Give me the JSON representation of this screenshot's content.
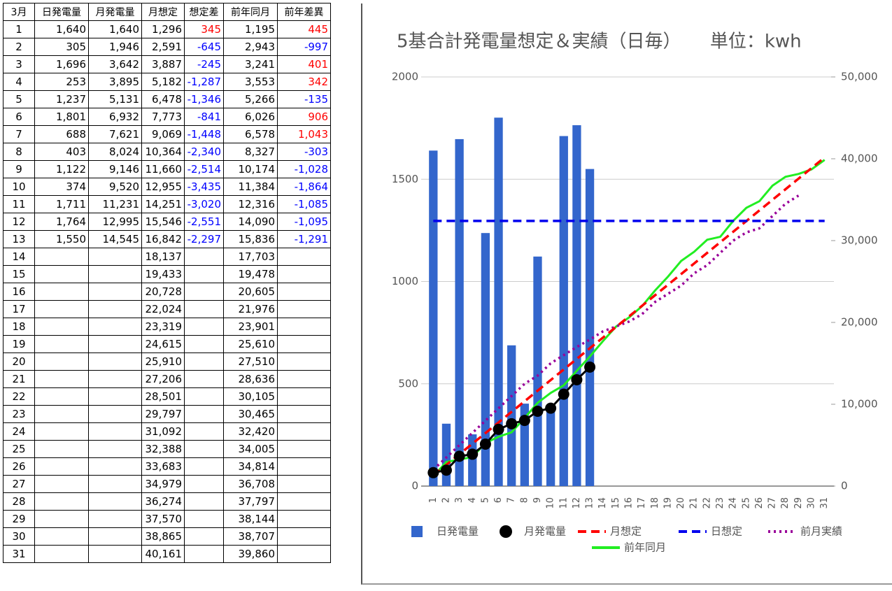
{
  "table": {
    "header": [
      "3月",
      "日発電量",
      "月発電量",
      "月想定",
      "想定差",
      "前年同月",
      "前年差異"
    ],
    "colored_columns": [
      4,
      6
    ],
    "positive_color": "#ff0000",
    "negative_color": "#0000ff",
    "rows": [
      [
        "1",
        "1,640",
        "1,640",
        "1,296",
        "345",
        "1,195",
        "445"
      ],
      [
        "2",
        "305",
        "1,946",
        "2,591",
        "-645",
        "2,943",
        "-997"
      ],
      [
        "3",
        "1,696",
        "3,642",
        "3,887",
        "-245",
        "3,241",
        "401"
      ],
      [
        "4",
        "253",
        "3,895",
        "5,182",
        "-1,287",
        "3,553",
        "342"
      ],
      [
        "5",
        "1,237",
        "5,131",
        "6,478",
        "-1,346",
        "5,266",
        "-135"
      ],
      [
        "6",
        "1,801",
        "6,932",
        "7,773",
        "-841",
        "6,026",
        "906"
      ],
      [
        "7",
        "688",
        "7,621",
        "9,069",
        "-1,448",
        "6,578",
        "1,043"
      ],
      [
        "8",
        "403",
        "8,024",
        "10,364",
        "-2,340",
        "8,327",
        "-303"
      ],
      [
        "9",
        "1,122",
        "9,146",
        "11,660",
        "-2,514",
        "10,174",
        "-1,028"
      ],
      [
        "10",
        "374",
        "9,520",
        "12,955",
        "-3,435",
        "11,384",
        "-1,864"
      ],
      [
        "11",
        "1,711",
        "11,231",
        "14,251",
        "-3,020",
        "12,316",
        "-1,085"
      ],
      [
        "12",
        "1,764",
        "12,995",
        "15,546",
        "-2,551",
        "14,090",
        "-1,095"
      ],
      [
        "13",
        "1,550",
        "14,545",
        "16,842",
        "-2,297",
        "15,836",
        "-1,291"
      ],
      [
        "14",
        null,
        null,
        "18,137",
        null,
        "17,703",
        null
      ],
      [
        "15",
        null,
        null,
        "19,433",
        null,
        "19,478",
        null
      ],
      [
        "16",
        null,
        null,
        "20,728",
        null,
        "20,605",
        null
      ],
      [
        "17",
        null,
        null,
        "22,024",
        null,
        "21,976",
        null
      ],
      [
        "18",
        null,
        null,
        "23,319",
        null,
        "23,901",
        null
      ],
      [
        "19",
        null,
        null,
        "24,615",
        null,
        "25,610",
        null
      ],
      [
        "20",
        null,
        null,
        "25,910",
        null,
        "27,510",
        null
      ],
      [
        "21",
        null,
        null,
        "27,206",
        null,
        "28,636",
        null
      ],
      [
        "22",
        null,
        null,
        "28,501",
        null,
        "30,105",
        null
      ],
      [
        "23",
        null,
        null,
        "29,797",
        null,
        "30,465",
        null
      ],
      [
        "24",
        null,
        null,
        "31,092",
        null,
        "32,420",
        null
      ],
      [
        "25",
        null,
        null,
        "32,388",
        null,
        "34,005",
        null
      ],
      [
        "26",
        null,
        null,
        "33,683",
        null,
        "34,814",
        null
      ],
      [
        "27",
        null,
        null,
        "34,979",
        null,
        "36,708",
        null
      ],
      [
        "28",
        null,
        null,
        "36,274",
        null,
        "37,797",
        null
      ],
      [
        "29",
        null,
        null,
        "37,570",
        null,
        "38,144",
        null
      ],
      [
        "30",
        null,
        null,
        "38,865",
        null,
        "38,707",
        null
      ],
      [
        "31",
        null,
        null,
        "40,161",
        null,
        "39,860",
        null
      ]
    ]
  },
  "chart_data": {
    "type": "bar",
    "title": "5基合計発電量想定＆実績（日毎）     単位：kwh",
    "categories": [
      "1",
      "2",
      "3",
      "4",
      "5",
      "6",
      "7",
      "8",
      "9",
      "10",
      "11",
      "12",
      "13",
      "14",
      "15",
      "16",
      "17",
      "18",
      "19",
      "20",
      "21",
      "22",
      "23",
      "24",
      "25",
      "26",
      "27",
      "28",
      "29",
      "30",
      "31"
    ],
    "ylim": [
      0,
      2000
    ],
    "yticks": [
      0,
      500,
      1000,
      1500,
      2000
    ],
    "y2lim": [
      0,
      50000
    ],
    "y2ticks": [
      0,
      {
        "value": 10000,
        "label": "10,000"
      },
      {
        "value": 20000,
        "label": "20,000"
      },
      {
        "value": 30000,
        "label": "30,000"
      },
      {
        "value": 40000,
        "label": "40,000"
      },
      {
        "value": 50000,
        "label": "50,000"
      }
    ],
    "grid": true,
    "series": [
      {
        "name": "日発電量",
        "kind": "bar",
        "color": "#3366cc",
        "values": [
          1640,
          305,
          1696,
          253,
          1237,
          1801,
          688,
          403,
          1122,
          374,
          1711,
          1764,
          1550,
          null,
          null,
          null,
          null,
          null,
          null,
          null,
          null,
          null,
          null,
          null,
          null,
          null,
          null,
          null,
          null,
          null,
          null
        ]
      },
      {
        "name": "月発電量",
        "kind": "line",
        "axis": "y2",
        "style": "solid",
        "marker": "circle",
        "color": "#000000",
        "values": [
          1640,
          1946,
          3642,
          3895,
          5131,
          6932,
          7621,
          8024,
          9146,
          9520,
          11231,
          12995,
          14545,
          null,
          null,
          null,
          null,
          null,
          null,
          null,
          null,
          null,
          null,
          null,
          null,
          null,
          null,
          null,
          null,
          null,
          null
        ]
      },
      {
        "name": "月想定",
        "kind": "line",
        "axis": "y2",
        "style": "dashed",
        "color": "#ff0000",
        "values": [
          1296,
          2591,
          3887,
          5182,
          6478,
          7773,
          9069,
          10364,
          11660,
          12955,
          14251,
          15546,
          16842,
          18137,
          19433,
          20728,
          22024,
          23319,
          24615,
          25910,
          27206,
          28501,
          29797,
          31092,
          32388,
          33683,
          34979,
          36274,
          37570,
          38865,
          40161
        ]
      },
      {
        "name": "日想定",
        "kind": "line",
        "style": "dashed",
        "color": "#0000ee",
        "values": [
          1296,
          1296,
          1296,
          1296,
          1296,
          1296,
          1296,
          1296,
          1296,
          1296,
          1296,
          1296,
          1296,
          1296,
          1296,
          1296,
          1296,
          1296,
          1296,
          1296,
          1296,
          1296,
          1296,
          1296,
          1296,
          1296,
          1296,
          1296,
          1296,
          1296,
          1296
        ]
      },
      {
        "name": "前月実績",
        "kind": "line",
        "axis": "y2",
        "style": "dotted",
        "color": "#990099",
        "values": [
          2000,
          3500,
          5000,
          6500,
          8000,
          9500,
          11000,
          12500,
          13500,
          15000,
          16000,
          17000,
          17900,
          18900,
          19500,
          20100,
          21000,
          22500,
          23500,
          24500,
          26000,
          27000,
          28500,
          30000,
          31000,
          31500,
          33000,
          34500,
          35500,
          null,
          null
        ]
      },
      {
        "name": "前年同月",
        "kind": "line",
        "axis": "y2",
        "style": "solid",
        "color": "#22ee22",
        "values": [
          1195,
          2943,
          3241,
          3553,
          5266,
          6026,
          6578,
          8327,
          10174,
          11384,
          12316,
          14090,
          15836,
          17703,
          19478,
          20605,
          21976,
          23901,
          25610,
          27510,
          28636,
          30105,
          30465,
          32420,
          34005,
          34814,
          36708,
          37797,
          38144,
          38707,
          39860
        ]
      }
    ]
  }
}
